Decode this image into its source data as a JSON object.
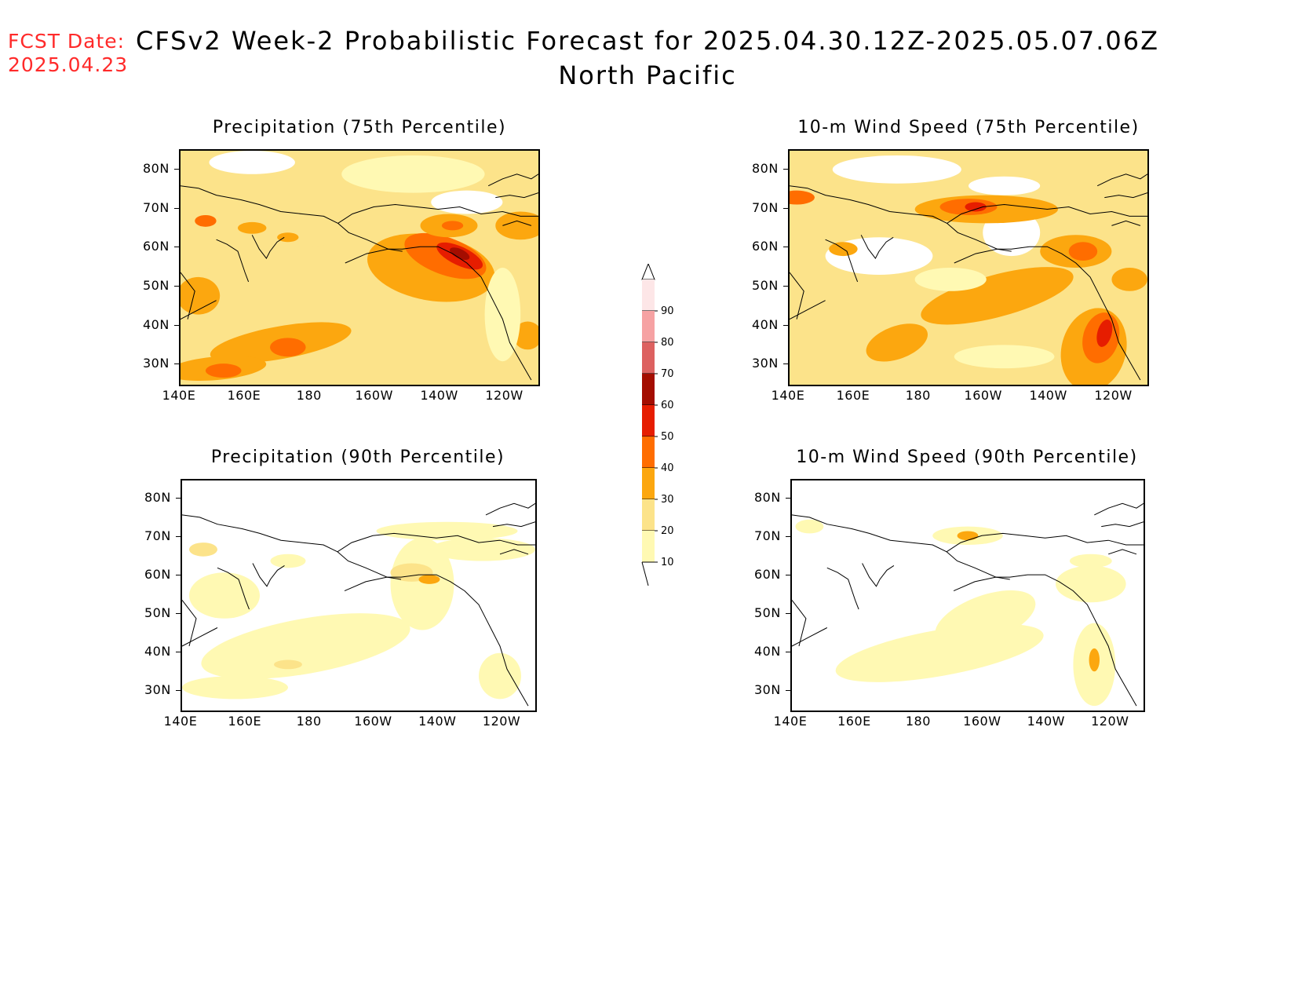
{
  "header": {
    "fcst_label": "FCST Date:",
    "fcst_date": "2025.04.23",
    "title": "CFSv2 Week-2 Probabilistic Forecast for 2025.04.30.12Z-2025.05.07.06Z",
    "subtitle": "North Pacific"
  },
  "panels": [
    {
      "id": "precip75",
      "title": "Precipitation (75th Percentile)"
    },
    {
      "id": "wind75",
      "title": "10-m Wind Speed (75th Percentile)"
    },
    {
      "id": "precip90",
      "title": "Precipitation (90th Percentile)"
    },
    {
      "id": "wind90",
      "title": "10-m Wind Speed (90th Percentile)"
    }
  ],
  "axes": {
    "lat_labels": [
      "80N",
      "70N",
      "60N",
      "50N",
      "40N",
      "30N"
    ],
    "lon_labels": [
      "140E",
      "160E",
      "180",
      "160W",
      "140W",
      "120W"
    ],
    "lat_values": [
      80,
      70,
      60,
      50,
      40,
      30
    ],
    "lon_values": [
      140,
      160,
      180,
      200,
      220,
      240
    ],
    "lat_range": [
      25,
      85
    ],
    "lon_range": [
      140,
      250
    ]
  },
  "colorbar": {
    "labels": [
      "90",
      "80",
      "70",
      "60",
      "50",
      "40",
      "30",
      "20",
      "10"
    ],
    "levels": [
      10,
      20,
      30,
      40,
      50,
      60,
      70,
      80,
      90
    ],
    "colors": [
      "#fff9b3",
      "#fce38a",
      "#fca70f",
      "#ff6d00",
      "#e61d00",
      "#a40d00",
      "#dd6160",
      "#f6a2a3",
      "#fde6e7"
    ]
  },
  "colors": {
    "title_red": "#ff2a2a",
    "lowest_contour": "#fff9b3"
  }
}
